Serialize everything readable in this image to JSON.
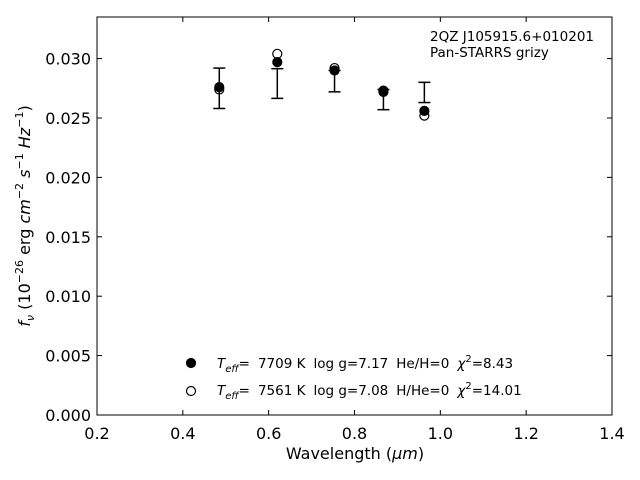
{
  "chart_data": {
    "type": "scatter",
    "annotation": {
      "line1": "2QZ J105915.6+010201",
      "line2": "Pan-STARRS grizy"
    },
    "xlabel": {
      "prefix": "Wavelength (",
      "unit": "μm",
      "suffix": ")"
    },
    "ylabel": {
      "prefix": "f",
      "sub": "ν",
      "part1": " (10",
      "exp1": "−26",
      "part2": " erg ",
      "cm": "cm",
      "exp2": "−2",
      "s": "s",
      "exp3": "−1",
      "hz": "Hz",
      "exp4": "−1",
      "close": ")"
    },
    "xlim": [
      0.2,
      1.4
    ],
    "ylim": [
      0.0,
      0.0335
    ],
    "xticks": [
      0.2,
      0.4,
      0.6,
      0.8,
      1.0,
      1.2,
      1.4
    ],
    "xtick_labels": [
      "0.2",
      "0.4",
      "0.6",
      "0.8",
      "1.0",
      "1.2",
      "1.4"
    ],
    "yticks": [
      0.0,
      0.005,
      0.01,
      0.015,
      0.02,
      0.025,
      0.03
    ],
    "ytick_labels": [
      "0.000",
      "0.005",
      "0.010",
      "0.015",
      "0.020",
      "0.025",
      "0.030"
    ],
    "grid": false,
    "observed": {
      "x": [
        0.4849,
        0.6201,
        0.7535,
        0.8674,
        0.9628
      ],
      "y": [
        0.0275,
        0.0279,
        0.0281,
        0.02655,
        0.02715
      ],
      "yerr": [
        0.0017,
        0.00125,
        0.0009,
        0.00085,
        0.00085
      ]
    },
    "series": [
      {
        "marker": "filled-circle",
        "x": [
          0.4849,
          0.6201,
          0.7535,
          0.8674,
          0.9628
        ],
        "y": [
          0.0276,
          0.0297,
          0.029,
          0.0272,
          0.0256
        ],
        "legend": {
          "teff_symbol": "T",
          "teff_sub": "eff",
          "eq": "=",
          "teff_value": "7709 K",
          "logg": "log g=7.17",
          "comp": "He/H=0",
          "chi_symbol": "χ",
          "chi_exp": "2",
          "chi_value": "=8.43"
        }
      },
      {
        "marker": "open-circle",
        "x": [
          0.4849,
          0.6201,
          0.7535,
          0.8674,
          0.9628
        ],
        "y": [
          0.0274,
          0.0304,
          0.0292,
          0.0273,
          0.0252
        ],
        "legend": {
          "teff_symbol": "T",
          "teff_sub": "eff",
          "eq": "=",
          "teff_value": "7561 K",
          "logg": "log g=7.08",
          "comp": "H/He=0",
          "chi_symbol": "χ",
          "chi_exp": "2",
          "chi_value": "=14.01"
        }
      }
    ],
    "legend_position": "lower-center",
    "colors": {
      "marker": "#000000",
      "axes": "#000000",
      "background": "#ffffff"
    }
  }
}
